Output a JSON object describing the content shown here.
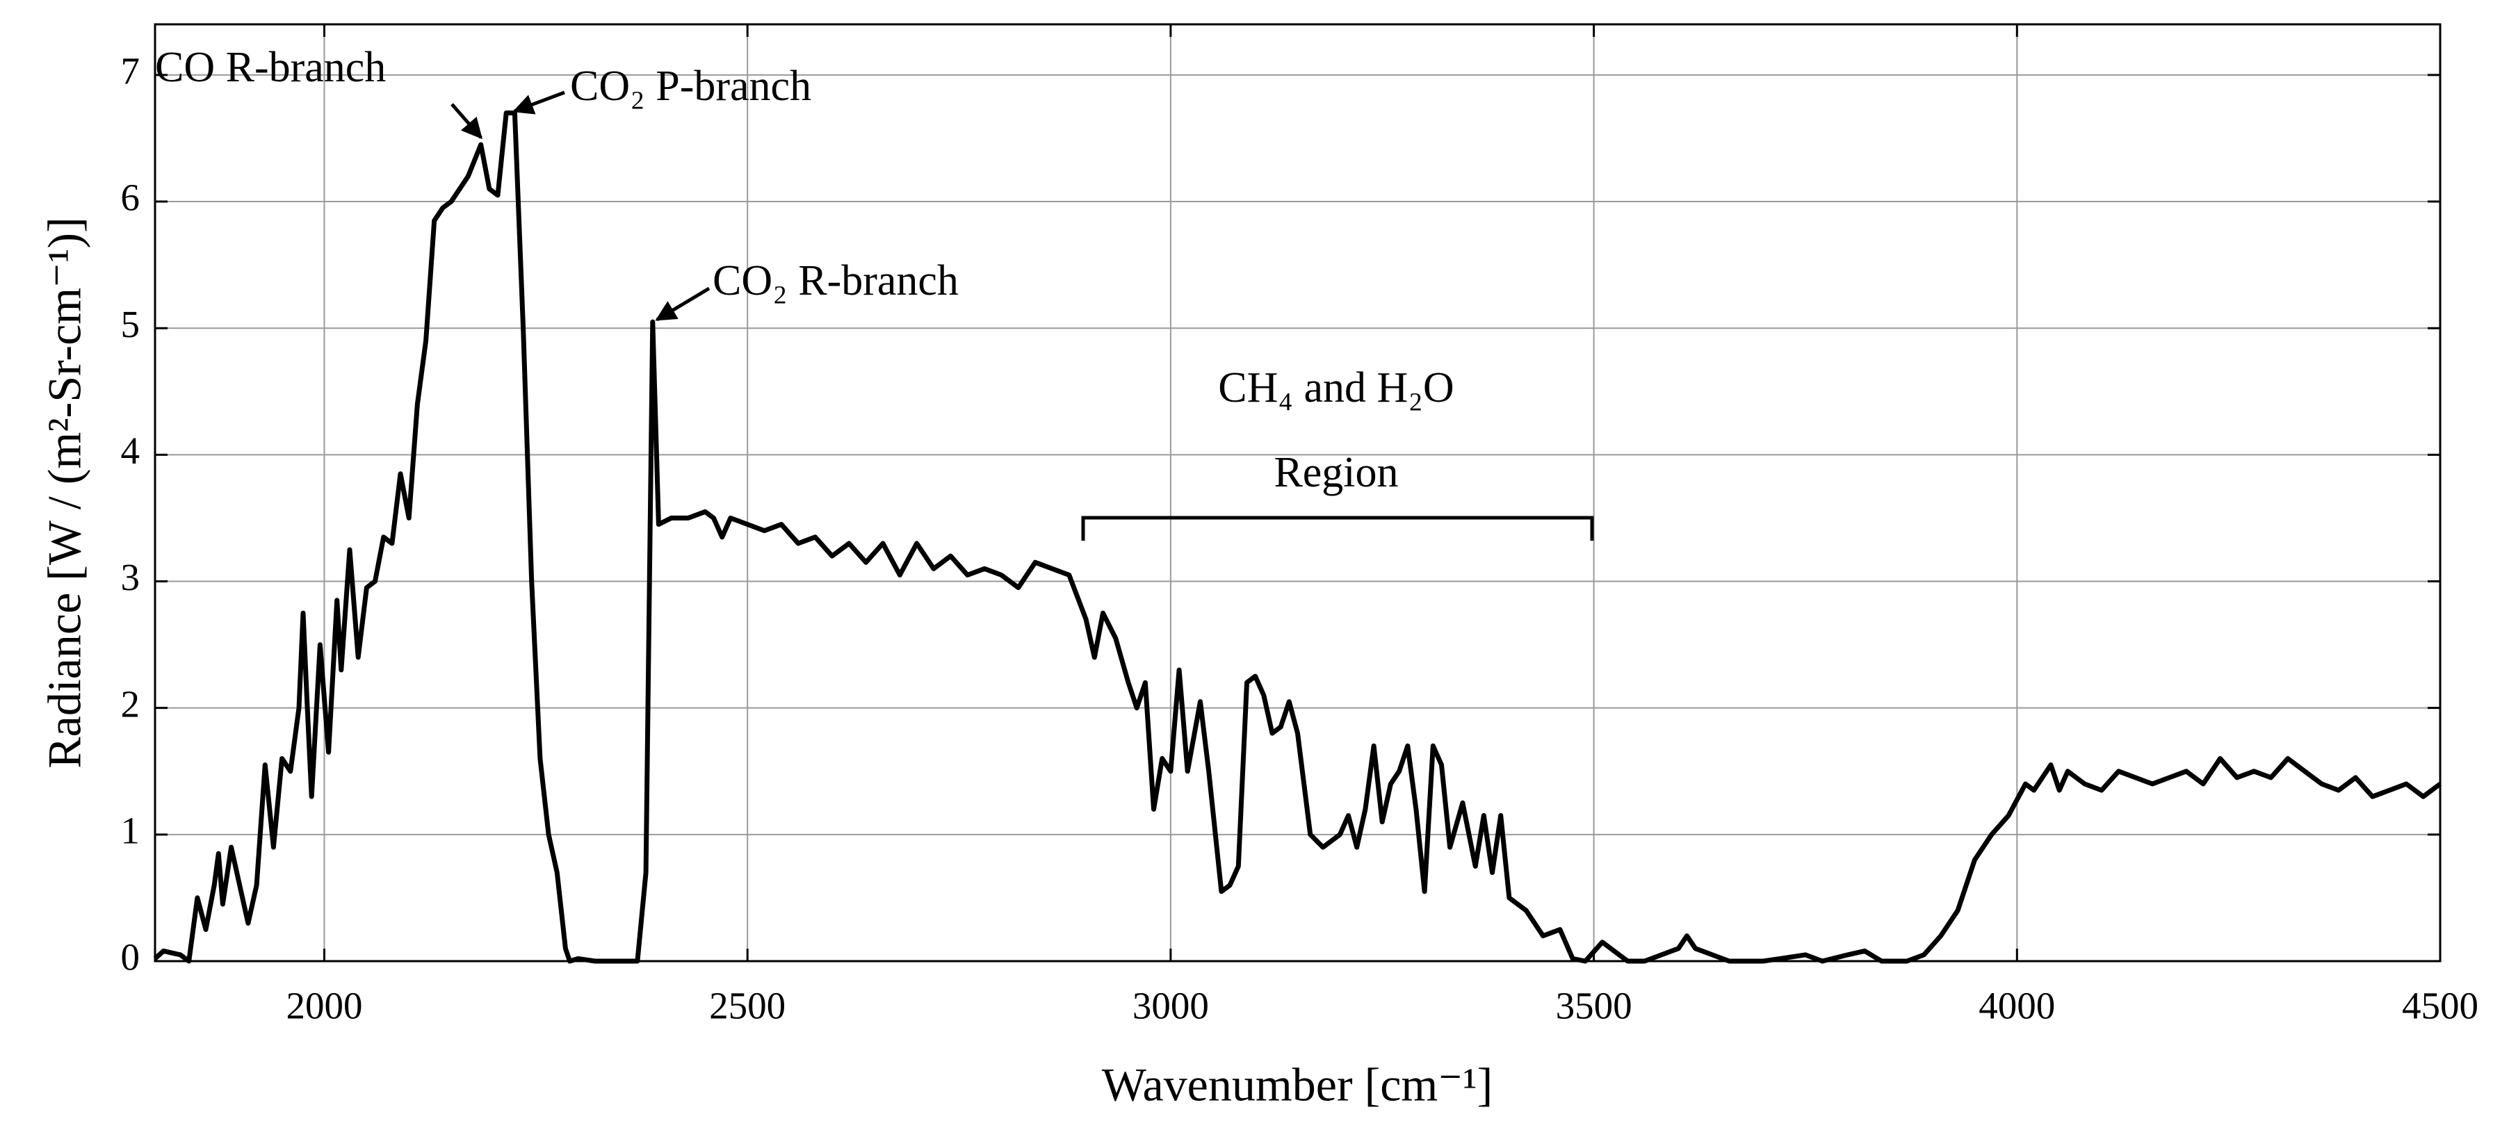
{
  "chart_data": {
    "type": "line",
    "x_label": "Wavenumber [cm⁻¹]",
    "y_label": "Radiance [W / (m²-Sr-cm⁻¹)]",
    "annotations": [
      "CO R-branch",
      "CO₂ P-branch",
      "CO₂ R-branch",
      "CH₄ and H₂O",
      "Region"
    ],
    "color": "#000000",
    "grid": true,
    "xlim": [
      1800,
      4500
    ],
    "xticks": [
      2000,
      2500,
      3000,
      3500,
      4000,
      4500
    ],
    "ylim": [
      0,
      7.4
    ],
    "yticks": [
      0,
      1,
      2,
      3,
      4,
      5,
      6,
      7
    ],
    "x": [
      1800,
      1810,
      1830,
      1840,
      1850,
      1860,
      1870,
      1875,
      1880,
      1890,
      1900,
      1910,
      1920,
      1930,
      1940,
      1950,
      1960,
      1970,
      1975,
      1980,
      1985,
      1995,
      2005,
      2015,
      2020,
      2030,
      2040,
      2050,
      2060,
      2070,
      2080,
      2090,
      2100,
      2110,
      2120,
      2130,
      2140,
      2150,
      2170,
      2185,
      2195,
      2205,
      2215,
      2225,
      2235,
      2245,
      2255,
      2265,
      2275,
      2285,
      2290,
      2300,
      2320,
      2350,
      2370,
      2380,
      2388,
      2395,
      2410,
      2430,
      2450,
      2460,
      2470,
      2480,
      2500,
      2520,
      2540,
      2560,
      2580,
      2600,
      2620,
      2640,
      2660,
      2680,
      2700,
      2720,
      2740,
      2760,
      2780,
      2800,
      2820,
      2840,
      2860,
      2880,
      2900,
      2910,
      2920,
      2935,
      2950,
      2960,
      2970,
      2980,
      2990,
      3000,
      3010,
      3020,
      3035,
      3045,
      3060,
      3070,
      3080,
      3090,
      3100,
      3110,
      3120,
      3130,
      3140,
      3150,
      3165,
      3180,
      3200,
      3210,
      3220,
      3230,
      3240,
      3250,
      3260,
      3270,
      3280,
      3290,
      3300,
      3310,
      3320,
      3330,
      3345,
      3360,
      3370,
      3380,
      3390,
      3400,
      3420,
      3440,
      3460,
      3475,
      3490,
      3510,
      3530,
      3540,
      3560,
      3580,
      3600,
      3610,
      3620,
      3640,
      3660,
      3700,
      3720,
      3750,
      3770,
      3800,
      3820,
      3840,
      3870,
      3890,
      3910,
      3930,
      3950,
      3970,
      3990,
      4010,
      4020,
      4040,
      4050,
      4060,
      4080,
      4100,
      4120,
      4140,
      4160,
      4180,
      4200,
      4220,
      4240,
      4260,
      4280,
      4300,
      4320,
      4340,
      4360,
      4380,
      4400,
      4420,
      4440,
      4460,
      4480,
      4500
    ],
    "values": [
      0.02,
      0.08,
      0.05,
      0.0,
      0.5,
      0.25,
      0.6,
      0.85,
      0.45,
      0.9,
      0.6,
      0.3,
      0.6,
      1.55,
      0.9,
      1.6,
      1.5,
      2.0,
      2.75,
      2.0,
      1.3,
      2.5,
      1.65,
      2.85,
      2.3,
      3.25,
      2.4,
      2.95,
      3.0,
      3.35,
      3.3,
      3.85,
      3.5,
      4.4,
      4.9,
      5.85,
      5.95,
      6.0,
      6.2,
      6.45,
      6.1,
      6.05,
      6.7,
      6.7,
      5.0,
      3.0,
      1.6,
      1.0,
      0.7,
      0.1,
      0.0,
      0.02,
      0.0,
      0.0,
      0.0,
      0.7,
      5.05,
      3.45,
      3.5,
      3.5,
      3.55,
      3.5,
      3.35,
      3.5,
      3.45,
      3.4,
      3.45,
      3.3,
      3.35,
      3.2,
      3.3,
      3.15,
      3.3,
      3.05,
      3.3,
      3.1,
      3.2,
      3.05,
      3.1,
      3.05,
      2.95,
      3.15,
      3.1,
      3.05,
      2.7,
      2.4,
      2.75,
      2.55,
      2.2,
      2.0,
      2.2,
      1.2,
      1.6,
      1.5,
      2.3,
      1.5,
      2.05,
      1.5,
      0.55,
      0.6,
      0.75,
      2.2,
      2.25,
      2.1,
      1.8,
      1.85,
      2.05,
      1.8,
      1.0,
      0.9,
      1.0,
      1.15,
      0.9,
      1.2,
      1.7,
      1.1,
      1.4,
      1.5,
      1.7,
      1.2,
      0.55,
      1.7,
      1.55,
      0.9,
      1.25,
      0.75,
      1.15,
      0.7,
      1.15,
      0.5,
      0.4,
      0.2,
      0.25,
      0.02,
      0.0,
      0.15,
      0.05,
      0.0,
      0.0,
      0.05,
      0.1,
      0.2,
      0.1,
      0.05,
      0.0,
      0.0,
      0.02,
      0.05,
      0.0,
      0.05,
      0.08,
      0.0,
      0.0,
      0.05,
      0.2,
      0.4,
      0.8,
      1.0,
      1.15,
      1.4,
      1.35,
      1.55,
      1.35,
      1.5,
      1.4,
      1.35,
      1.5,
      1.45,
      1.4,
      1.45,
      1.5,
      1.4,
      1.6,
      1.45,
      1.5,
      1.45,
      1.6,
      1.5,
      1.4,
      1.35,
      1.45,
      1.3,
      1.35,
      1.4,
      1.3,
      1.4
    ]
  }
}
